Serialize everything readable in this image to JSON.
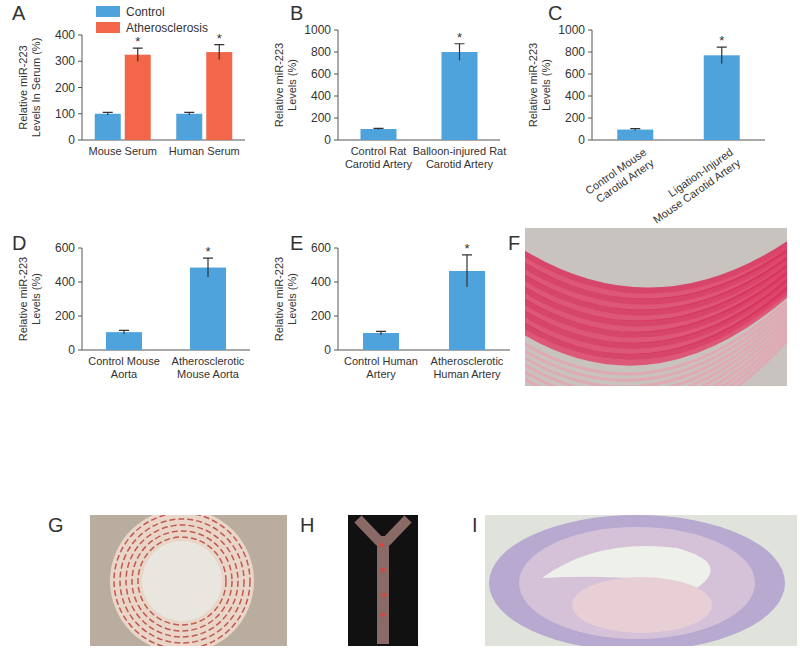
{
  "chart_data": [
    {
      "type": "bar",
      "title": "A",
      "y_label": "Relative miR-223\nLevels In Serum (%)",
      "categories": [
        "Mouse Serum",
        "Human Serum"
      ],
      "series": [
        {
          "name": "Control",
          "color": "#4fa3dc",
          "values": [
            100,
            100
          ],
          "errors": [
            5,
            5
          ]
        },
        {
          "name": "Atherosclerosis",
          "color": "#f2664a",
          "values": [
            325,
            335
          ],
          "errors": [
            25,
            28
          ]
        }
      ],
      "annotations": [
        {
          "series": 1,
          "index": 0,
          "text": "*"
        },
        {
          "series": 1,
          "index": 1,
          "text": "*"
        }
      ],
      "ylim": [
        0,
        400
      ],
      "yticks": [
        0,
        100,
        200,
        300,
        400
      ],
      "legend": "top"
    },
    {
      "type": "bar",
      "title": "B",
      "y_label": "Relative miR-223\nLevels (%)",
      "categories": [
        "Control Rat\nCarotid Artery",
        "Balloon-injured Rat\nCarotid Artery"
      ],
      "values": [
        100,
        800
      ],
      "errors": [
        5,
        75
      ],
      "color": "#4fa3dc",
      "annotations": [
        {
          "index": 1,
          "text": "*"
        }
      ],
      "ylim": [
        0,
        1000
      ],
      "yticks": [
        0,
        200,
        400,
        600,
        800,
        1000
      ]
    },
    {
      "type": "bar",
      "title": "C",
      "y_label": "Relative miR-223\nLevels (%)",
      "categories": [
        "Control Mouse\nCarotid Artery",
        "Ligation-Injured\nMouse Carotid Artery"
      ],
      "values": [
        95,
        770
      ],
      "errors": [
        8,
        75
      ],
      "color": "#4fa3dc",
      "annotations": [
        {
          "index": 1,
          "text": "*"
        }
      ],
      "ylim": [
        0,
        1000
      ],
      "yticks": [
        0,
        200,
        400,
        600,
        800,
        1000
      ]
    },
    {
      "type": "bar",
      "title": "D",
      "y_label": "Relative miR-223\nLevels (%)",
      "categories": [
        "Control Mouse\nAorta",
        "Atherosclerotic\nMouse Aorta"
      ],
      "values": [
        105,
        485
      ],
      "errors": [
        10,
        55
      ],
      "color": "#4fa3dc",
      "annotations": [
        {
          "index": 1,
          "text": "*"
        }
      ],
      "ylim": [
        0,
        600
      ],
      "yticks": [
        0,
        200,
        400,
        600
      ]
    },
    {
      "type": "bar",
      "title": "E",
      "y_label": "Relative miR-223\nLevels (%)",
      "categories": [
        "Control Human\nArtery",
        "Atherosclerotic\nHuman Artery"
      ],
      "values": [
        100,
        465
      ],
      "errors": [
        10,
        95
      ],
      "color": "#4fa3dc",
      "annotations": [
        {
          "index": 1,
          "text": "*"
        }
      ],
      "ylim": [
        0,
        600
      ],
      "yticks": [
        0,
        200,
        400,
        600
      ]
    }
  ],
  "image_panels": [
    {
      "label": "F"
    },
    {
      "label": "G"
    },
    {
      "label": "H"
    },
    {
      "label": "I"
    }
  ]
}
